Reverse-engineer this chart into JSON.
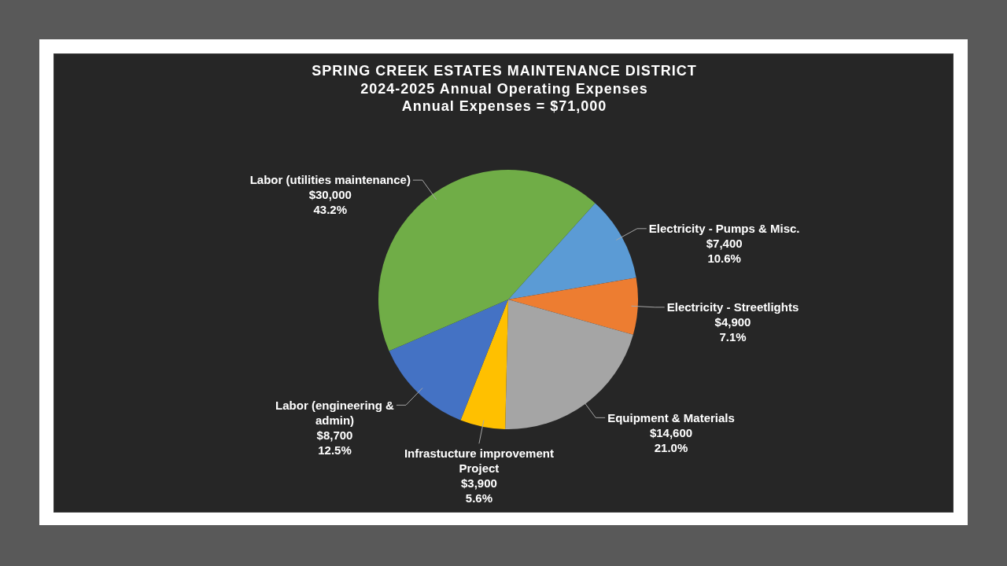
{
  "chart_data": {
    "type": "pie",
    "title": "SPRING CREEK ESTATES MAINTENANCE DISTRICT",
    "subtitle": "2024-2025 Annual Operating Expenses\nAnnual Expenses = $71,000",
    "categories": [
      "Electricity - Pumps & Misc.",
      "Electricity - Streetlights",
      "Equipment & Materials",
      "Infrastucture improvement Project",
      "Labor (engineering & admin)",
      "Labor (utilities maintenance)"
    ],
    "values": [
      7400,
      4900,
      14600,
      3900,
      8700,
      30000
    ],
    "colors": [
      "#5b9bd5",
      "#ed7d31",
      "#a5a5a5",
      "#ffc000",
      "#4472c4",
      "#70ad47"
    ],
    "value_labels": [
      "$7,400\n10.6%",
      "$4,900\n7.1%",
      "$14,600\n21.0%",
      "$3,900\n5.6%",
      "$8,700\n12.5%",
      "$30,000\n43.2%"
    ]
  }
}
